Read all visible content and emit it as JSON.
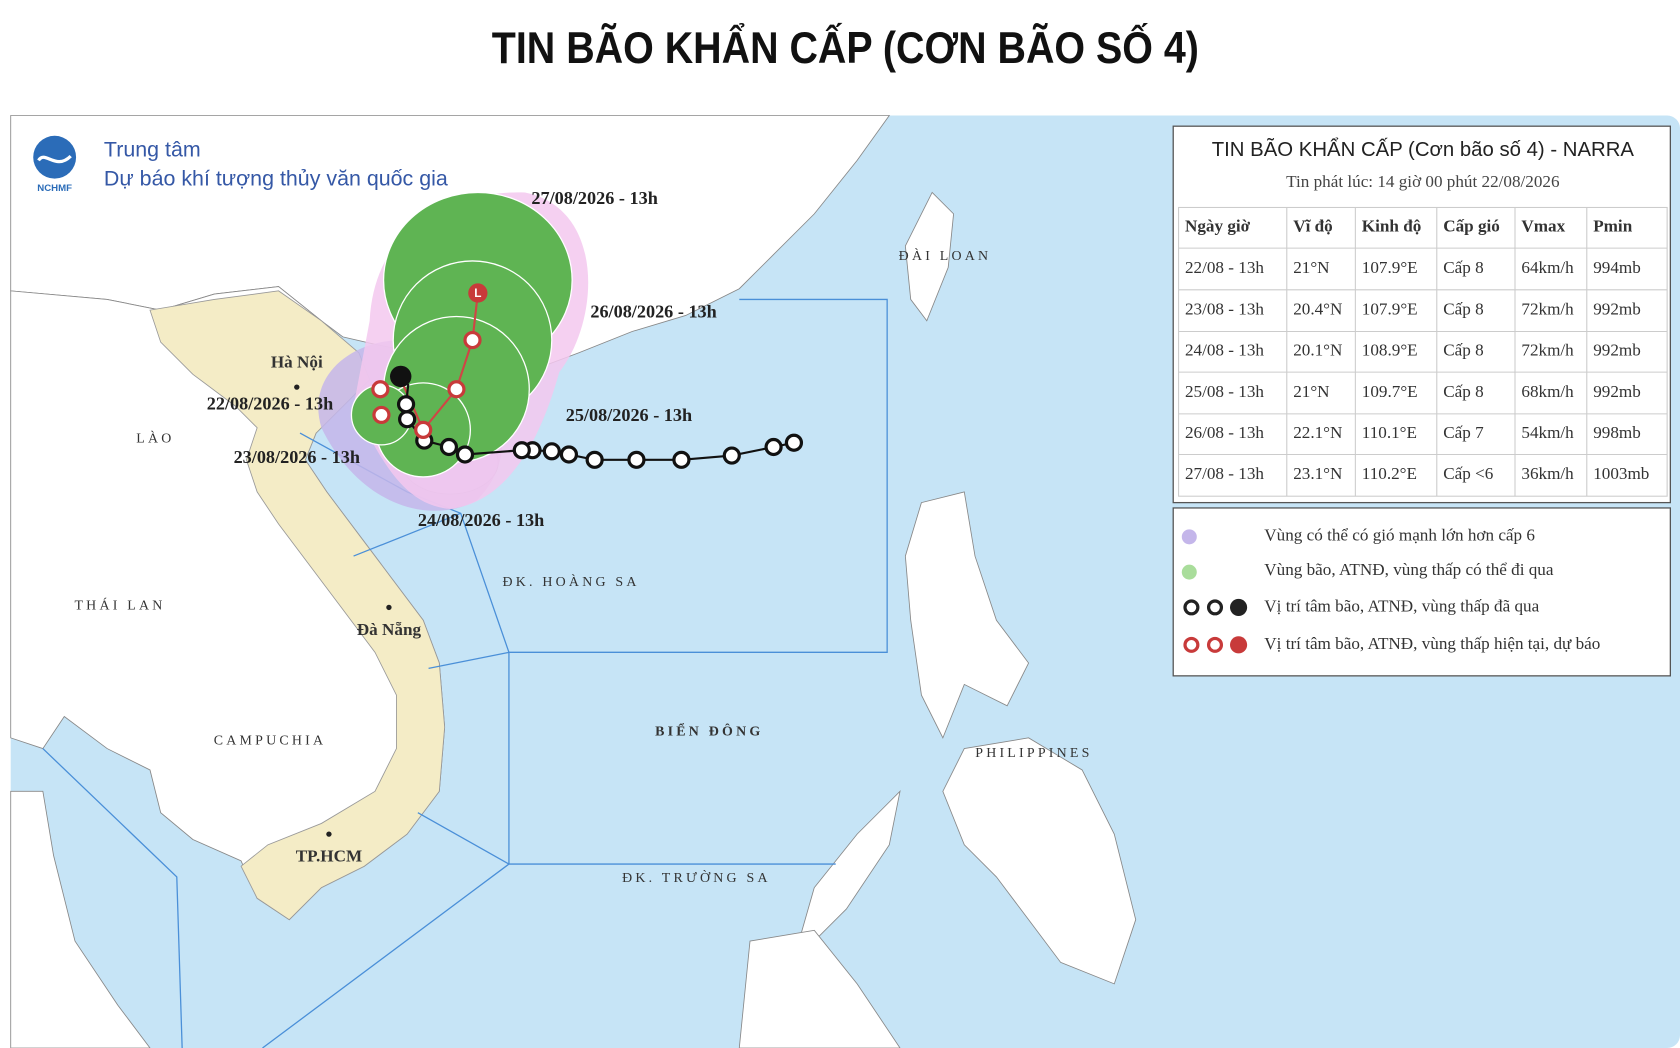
{
  "title": "TIN BÃO KHẨN CẤP (CƠN BÃO SỐ 4)",
  "logo": {
    "abbr": "NCHMF",
    "line1": "Trung tâm",
    "line2": "Dự báo khí tượng thủy văn quốc gia"
  },
  "map_labels": [
    "ĐÀI LOAN",
    "Hà Nội",
    "LÀO",
    "THÁI LAN",
    "Đà Nẵng",
    "CAMPUCHIA",
    "TP.HCM",
    "ĐK. HOÀNG SA",
    "BIỂN ĐÔNG",
    "ĐK. TRƯỜNG SA",
    "PHILIPPINES"
  ],
  "track_labels": [
    "27/08/2026 - 13h",
    "26/08/2026 - 13h",
    "25/08/2026 - 13h",
    "24/08/2026 - 13h",
    "22/08/2026 - 13h",
    "23/08/2026 - 13h"
  ],
  "panel": {
    "title": "TIN BÃO KHẨN CẤP (Cơn bão số 4) - NARRA",
    "issued": "Tin phát lúc: 14 giờ 00 phút 22/08/2026",
    "table": {
      "header": [
        "Ngày giờ",
        "Vĩ độ",
        "Kinh độ",
        "Cấp gió",
        "Vmax",
        "Pmin"
      ],
      "rows": [
        [
          "22/08 - 13h",
          "21°N",
          "107.9°E",
          "Cấp 8",
          "64km/h",
          "994mb"
        ],
        [
          "23/08 - 13h",
          "20.4°N",
          "107.9°E",
          "Cấp 8",
          "72km/h",
          "992mb"
        ],
        [
          "24/08 - 13h",
          "20.1°N",
          "108.9°E",
          "Cấp 8",
          "72km/h",
          "992mb"
        ],
        [
          "25/08 - 13h",
          "21°N",
          "109.7°E",
          "Cấp 8",
          "68km/h",
          "992mb"
        ],
        [
          "26/08 - 13h",
          "22.1°N",
          "110.1°E",
          "Cấp 7",
          "54km/h",
          "998mb"
        ],
        [
          "27/08 - 13h",
          "23.1°N",
          "110.2°E",
          "Cấp <6",
          "36km/h",
          "1003mb"
        ]
      ]
    },
    "legend": [
      "Vùng có thể có gió mạnh lớn hơn cấp 6",
      "Vùng bão, ATNĐ, vùng thấp có thể đi qua",
      "Vị trí tâm bão, ATNĐ, vùng thấp đã qua",
      "Vị trí tâm bão, ATNĐ, vùng thấp hiện tại, dự báo"
    ]
  }
}
